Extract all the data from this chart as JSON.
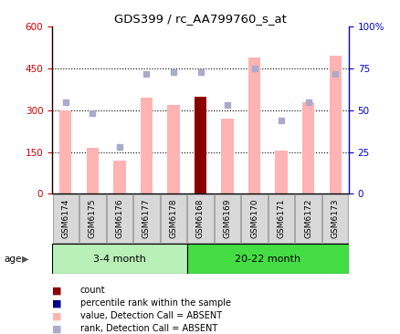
{
  "title": "GDS399 / rc_AA799760_s_at",
  "samples": [
    "GSM6174",
    "GSM6175",
    "GSM6176",
    "GSM6177",
    "GSM6178",
    "GSM6168",
    "GSM6169",
    "GSM6170",
    "GSM6171",
    "GSM6172",
    "GSM6173"
  ],
  "bar_values": [
    300,
    165,
    120,
    345,
    320,
    350,
    270,
    490,
    155,
    330,
    495
  ],
  "bar_colors": [
    "#ffb3b3",
    "#ffb3b3",
    "#ffb3b3",
    "#ffb3b3",
    "#ffb3b3",
    "#8b0000",
    "#ffb3b3",
    "#ffb3b3",
    "#ffb3b3",
    "#ffb3b3",
    "#ffb3b3"
  ],
  "rank_values": [
    55,
    48,
    28,
    72,
    73,
    73,
    53,
    75,
    44,
    55,
    72
  ],
  "ylim_left": [
    0,
    600
  ],
  "ylim_right": [
    0,
    100
  ],
  "yticks_left": [
    0,
    150,
    300,
    450,
    600
  ],
  "yticks_right": [
    0,
    25,
    50,
    75,
    100
  ],
  "ytick_labels_right": [
    "0",
    "25",
    "50",
    "75",
    "100%"
  ],
  "hlines": [
    150,
    300,
    450
  ],
  "group1_label": "3-4 month",
  "group2_label": "20-22 month",
  "n_group1": 5,
  "n_group2": 6,
  "age_label": "age",
  "left_axis_color": "#cc0000",
  "right_axis_color": "#0000cc",
  "rank_square_color": "#aaaacc",
  "count_square_color": "#8b0000",
  "legend_items": [
    {
      "color": "#8b0000",
      "label": "count"
    },
    {
      "color": "#00008b",
      "label": "percentile rank within the sample"
    },
    {
      "color": "#ffb3b3",
      "label": "value, Detection Call = ABSENT"
    },
    {
      "color": "#aaaacc",
      "label": "rank, Detection Call = ABSENT"
    }
  ],
  "group1_color": "#b8f0b8",
  "group2_color": "#44dd44",
  "tick_bg_color": "#d8d8d8",
  "bar_width": 0.45
}
